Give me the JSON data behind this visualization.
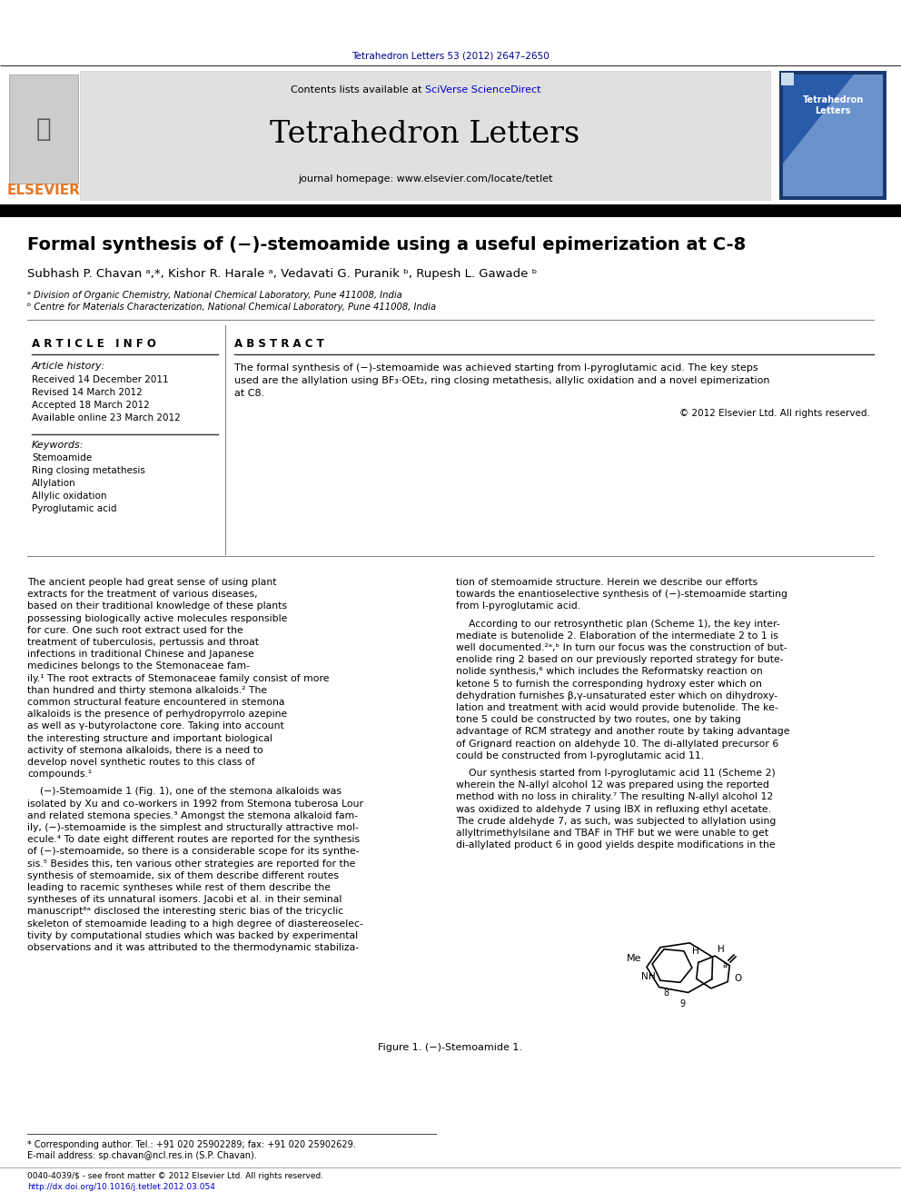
{
  "page_width": 9.92,
  "page_height": 13.23,
  "dpi": 100,
  "bg_color": "#ffffff",
  "header_citation": "Tetrahedron Letters 53 (2012) 2647–2650",
  "header_citation_color": "#00008B",
  "journal_name": "Tetrahedron Letters",
  "journal_url": "journal homepage: www.elsevier.com/locate/tetlet",
  "contents_prefix": "Contents lists available at ",
  "sciverse_text": "SciVerse ScienceDirect",
  "sciverse_color": "#0000CD",
  "header_bg": "#e0e0e0",
  "elsevier_color": "#E87722",
  "black_bar_color": "#000000",
  "top_rule_color": "#333333",
  "article_title": "Formal synthesis of (−)-stemoamide using a useful epimerization at C-8",
  "authors_line": "Subhash P. Chavan ᵃ,*, Kishor R. Harale ᵃ, Vedavati G. Puranik ᵇ, Rupesh L. Gawade ᵇ",
  "affil_a": "ᵃ Division of Organic Chemistry, National Chemical Laboratory, Pune 411008, India",
  "affil_b": "ᵇ Centre for Materials Characterization, National Chemical Laboratory, Pune 411008, India",
  "section_article_info": "A R T I C L E   I N F O",
  "section_abstract": "A B S T R A C T",
  "article_history_title": "Article history:",
  "history_lines": [
    "Received 14 December 2011",
    "Revised 14 March 2012",
    "Accepted 18 March 2012",
    "Available online 23 March 2012"
  ],
  "keywords_title": "Keywords:",
  "keywords": [
    "Stemoamide",
    "Ring closing metathesis",
    "Allylation",
    "Allylic oxidation",
    "Pyroglutamic acid"
  ],
  "abstract_lines": [
    "The formal synthesis of (−)-stemoamide was achieved starting from l-pyroglutamic acid. The key steps",
    "used are the allylation using BF₃·OEt₂, ring closing metathesis, allylic oxidation and a novel epimerization",
    "at C8."
  ],
  "copyright_text": "© 2012 Elsevier Ltd. All rights reserved.",
  "body_col1_lines": [
    "The ancient people had great sense of using plant",
    "extracts for the treatment of various diseases,",
    "based on their traditional knowledge of these plants",
    "possessing biologically active molecules responsible",
    "for cure. One such root extract used for the",
    "treatment of tuberculosis, pertussis and throat",
    "infections in traditional Chinese and Japanese",
    "medicines belongs to the Stemonaceae fam-",
    "ily.¹ The root extracts of Stemonaceae family consist of more",
    "than hundred and thirty stemona alkaloids.² The",
    "common structural feature encountered in stemona",
    "alkaloids is the presence of perhydropyrrolo azepine",
    "as well as γ-butyrolactone core. Taking into account",
    "the interesting structure and important biological",
    "activity of stemona alkaloids, there is a need to",
    "develop novel synthetic routes to this class of",
    "compounds.¹",
    "",
    "    (−)-Stemoamide 1 (Fig. 1), one of the stemona alkaloids was",
    "isolated by Xu and co-workers in 1992 from Stemona tuberosa Lour",
    "and related stemona species.³ Amongst the stemona alkaloid fam-",
    "ily, (−)-stemoamide is the simplest and structurally attractive mol-",
    "ecule.⁴ To date eight different routes are reported for the synthesis",
    "of (−)-stemoamide, so there is a considerable scope for its synthe-",
    "sis.⁵ Besides this, ten various other strategies are reported for the",
    "synthesis of stemoamide, six of them describe different routes",
    "leading to racemic syntheses while rest of them describe the",
    "syntheses of its unnatural isomers. Jacobi et al. in their seminal",
    "manuscript⁶ᵃ disclosed the interesting steric bias of the tricyclic",
    "skeleton of stemoamide leading to a high degree of diastereoselec-",
    "tivity by computational studies which was backed by experimental",
    "observations and it was attributed to the thermodynamic stabiliza-"
  ],
  "body_col2_lines": [
    "tion of stemoamide structure. Herein we describe our efforts",
    "towards the enantioselective synthesis of (−)-stemoamide starting",
    "from l-pyroglutamic acid.",
    "",
    "    According to our retrosynthetic plan (Scheme 1), the key inter-",
    "mediate is butenolide 2. Elaboration of the intermediate 2 to 1 is",
    "well documented.²ᵃ,ᵇ In turn our focus was the construction of but-",
    "enolide ring 2 based on our previously reported strategy for bute-",
    "nolide synthesis,⁶ which includes the Reformatsky reaction on",
    "ketone 5 to furnish the corresponding hydroxy ester which on",
    "dehydration furnishes β,γ-unsaturated ester which on dihydroxy-",
    "lation and treatment with acid would provide butenolide. The ke-",
    "tone 5 could be constructed by two routes, one by taking",
    "advantage of RCM strategy and another route by taking advantage",
    "of Grignard reaction on aldehyde 10. The di-allylated precursor 6",
    "could be constructed from l-pyroglutamic acid 11.",
    "",
    "    Our synthesis started from l-pyroglutamic acid 11 (Scheme 2)",
    "wherein the N-allyl alcohol 12 was prepared using the reported",
    "method with no loss in chirality.⁷ The resulting N-allyl alcohol 12",
    "was oxidized to aldehyde 7 using IBX in refluxing ethyl acetate.",
    "The crude aldehyde 7, as such, was subjected to allylation using",
    "allyltrimethylsilane and TBAF in THF but we were unable to get",
    "di-allylated product 6 in good yields despite modifications in the"
  ],
  "figure1_caption": "Figure 1. (−)-Stemoamide 1.",
  "footer_note": "* Corresponding author. Tel.: +91 020 25902289; fax: +91 020 25902629.",
  "footer_email": "E-mail address: sp.chavan@ncl.res.in (S.P. Chavan).",
  "footer_issn": "0040-4039/$ - see front matter © 2012 Elsevier Ltd. All rights reserved.",
  "footer_doi": "http://dx.doi.org/10.1016/j.tetlet.2012.03.054",
  "footer_doi_color": "#0000CD",
  "cover_bg": "#2255aa",
  "cover_text": "Tetrahedron\nLetters"
}
